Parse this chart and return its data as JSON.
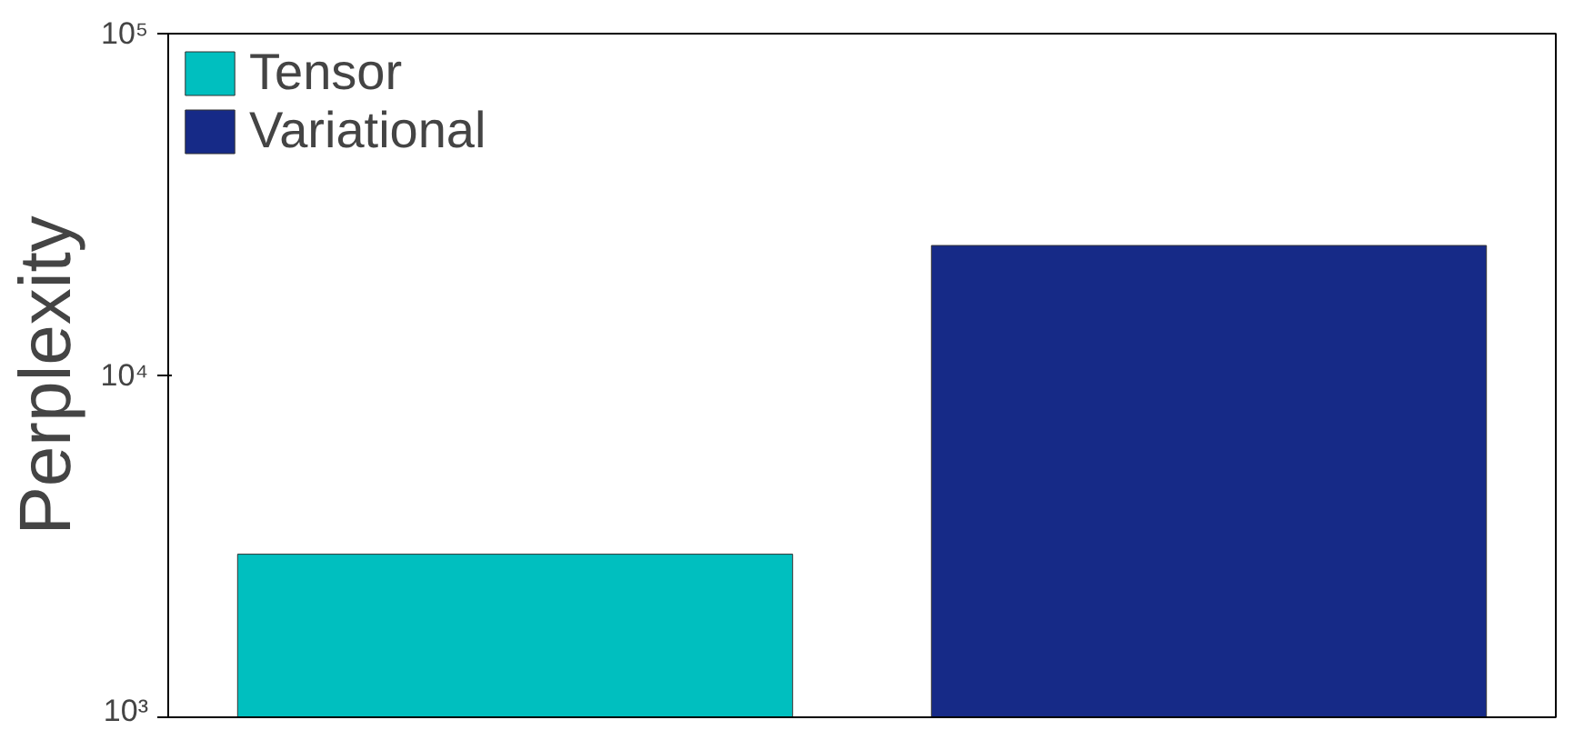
{
  "chart_data": {
    "type": "bar",
    "ylabel": "Perplexity",
    "categories": [
      null,
      null
    ],
    "series": [
      {
        "name": "Tensor",
        "color": "#00bfbf",
        "values": [
          3000,
          null
        ]
      },
      {
        "name": "Variational",
        "color": "#162a87",
        "values": [
          null,
          24000
        ]
      }
    ],
    "log": true,
    "ylim": [
      1000,
      100000
    ],
    "yticks": [
      {
        "value": 1000,
        "label": "10³"
      },
      {
        "value": 10000,
        "label": "10⁴"
      },
      {
        "value": 100000,
        "label": "10⁵"
      }
    ],
    "tick_labels": "y",
    "grid": false,
    "legend": "top left"
  }
}
